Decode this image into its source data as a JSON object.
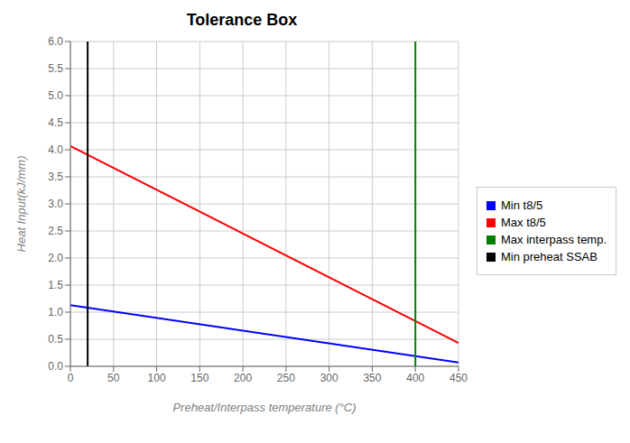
{
  "chart_data": {
    "type": "line",
    "title": "Tolerance Box",
    "xlabel": "Preheat/Interpass temperature (°C)",
    "ylabel": "Heat Input(kJ/mm)",
    "xlim": [
      0,
      450
    ],
    "ylim": [
      0,
      6
    ],
    "xticks": [
      0,
      50,
      100,
      150,
      200,
      250,
      300,
      350,
      400,
      450
    ],
    "yticks": [
      {
        "value": 0,
        "label": "0.0"
      },
      0.5,
      {
        "value": 1.0,
        "label": "1.0"
      },
      1.5,
      {
        "value": 2.0,
        "label": "2.0"
      },
      2.5,
      {
        "value": 3.0,
        "label": "3.0"
      },
      3.5,
      {
        "value": 4.0,
        "label": "4.0"
      },
      4.5,
      {
        "value": 5.0,
        "label": "5.0"
      },
      5.5,
      {
        "value": 6.0,
        "label": "6.0"
      }
    ],
    "grid": true,
    "legend": "right",
    "series": [
      {
        "name": "Min t8/5",
        "color": "#0000FF",
        "x": [
          0,
          450
        ],
        "values": [
          1.13,
          0.07
        ]
      },
      {
        "name": "Max t8/5",
        "color": "#FF0000",
        "x": [
          0,
          450
        ],
        "values": [
          4.07,
          0.43
        ]
      },
      {
        "name": "Max interpass temp.",
        "type": "vline",
        "color": "#008000",
        "x": 400
      },
      {
        "name": "Min preheat SSAB",
        "type": "vline",
        "color": "#000000",
        "x": 20
      }
    ]
  }
}
